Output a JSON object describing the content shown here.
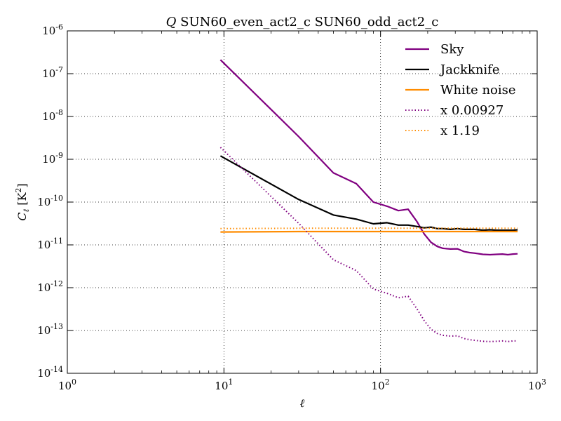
{
  "chart_data": {
    "type": "line",
    "title": {
      "var": "Q",
      "text": " SUN60_even_act2_c SUN60_odd_act2_c"
    },
    "xlabel": "ℓ",
    "ylabel": {
      "main": "C",
      "sub": "ℓ",
      "unit_open": " [K",
      "unit_sup": "2",
      "unit_close": "]"
    },
    "x_scale": "log",
    "y_scale": "log",
    "xlim": [
      1,
      1000
    ],
    "ylim": [
      1e-14,
      1e-06
    ],
    "x_ticks": [
      {
        "value": 1,
        "base": "10",
        "exp": "0"
      },
      {
        "value": 10,
        "base": "10",
        "exp": "1"
      },
      {
        "value": 100,
        "base": "10",
        "exp": "2"
      },
      {
        "value": 1000,
        "base": "10",
        "exp": "3"
      }
    ],
    "y_ticks": [
      {
        "value": 1e-14,
        "base": "10",
        "exp": "-14"
      },
      {
        "value": 1e-13,
        "base": "10",
        "exp": "-13"
      },
      {
        "value": 1e-12,
        "base": "10",
        "exp": "-12"
      },
      {
        "value": 1e-11,
        "base": "10",
        "exp": "-11"
      },
      {
        "value": 1e-10,
        "base": "10",
        "exp": "-10"
      },
      {
        "value": 1e-09,
        "base": "10",
        "exp": "-9"
      },
      {
        "value": 1e-08,
        "base": "10",
        "exp": "-8"
      },
      {
        "value": 1e-07,
        "base": "10",
        "exp": "-7"
      },
      {
        "value": 1e-06,
        "base": "10",
        "exp": "-6"
      }
    ],
    "grid": true,
    "legend_position": "top-right",
    "series": [
      {
        "name": "Sky",
        "color": "#800080",
        "style": "solid",
        "x": [
          9.5,
          30,
          50,
          70,
          90,
          110,
          130,
          150,
          170,
          190,
          210,
          230,
          250,
          280,
          310,
          340,
          370,
          400,
          450,
          500,
          550,
          600,
          650,
          700,
          750
        ],
        "y": [
          2.1e-07,
          3.4e-09,
          4.8e-10,
          2.7e-10,
          1e-10,
          8e-11,
          6.3e-11,
          6.8e-11,
          3.6e-11,
          1.8e-11,
          1.15e-11,
          9.2e-12,
          8.3e-12,
          8e-12,
          8.1e-12,
          7e-12,
          6.6e-12,
          6.4e-12,
          6e-12,
          5.9e-12,
          6e-12,
          6.1e-12,
          5.9e-12,
          6.1e-12,
          6.2e-12
        ]
      },
      {
        "name": "Jackknife",
        "color": "#000000",
        "style": "solid",
        "x": [
          9.5,
          30,
          50,
          70,
          90,
          110,
          130,
          150,
          170,
          190,
          210,
          230,
          250,
          280,
          310,
          340,
          370,
          400,
          450,
          500,
          550,
          600,
          650,
          700,
          750
        ],
        "y": [
          1.2e-09,
          1.15e-10,
          5e-11,
          4e-11,
          3.1e-11,
          3.3e-11,
          2.9e-11,
          2.9e-11,
          2.7e-11,
          2.5e-11,
          2.6e-11,
          2.4e-11,
          2.4e-11,
          2.3e-11,
          2.4e-11,
          2.3e-11,
          2.3e-11,
          2.3e-11,
          2.2e-11,
          2.25e-11,
          2.2e-11,
          2.2e-11,
          2.2e-11,
          2.2e-11,
          2.25e-11
        ]
      },
      {
        "name": "White noise",
        "color": "#ff8c00",
        "style": "solid",
        "x": [
          9.5,
          30,
          50,
          70,
          90,
          110,
          150,
          200,
          300,
          400,
          500,
          600,
          750
        ],
        "y": [
          2e-11,
          2.05e-11,
          2.05e-11,
          2.05e-11,
          2.05e-11,
          2.05e-11,
          2.05e-11,
          2.05e-11,
          2.05e-11,
          2.05e-11,
          2.05e-11,
          2.05e-11,
          2.05e-11
        ]
      },
      {
        "name": "x 0.00927",
        "color": "#800080",
        "style": "dotted",
        "x": [
          9.5,
          30,
          50,
          70,
          90,
          110,
          130,
          150,
          170,
          190,
          210,
          230,
          250,
          280,
          310,
          340,
          370,
          400,
          450,
          500,
          550,
          600,
          650,
          700,
          750
        ],
        "y": [
          1.9e-09,
          3.2e-11,
          4.5e-12,
          2.5e-12,
          9.3e-13,
          7.4e-13,
          5.8e-13,
          6.3e-13,
          3.3e-13,
          1.7e-13,
          1.07e-13,
          8.5e-14,
          7.7e-14,
          7.4e-14,
          7.5e-14,
          6.5e-14,
          6.1e-14,
          5.9e-14,
          5.6e-14,
          5.5e-14,
          5.6e-14,
          5.7e-14,
          5.5e-14,
          5.7e-14,
          5.7e-14
        ]
      },
      {
        "name": "x 1.19",
        "color": "#ff8c00",
        "style": "dotted",
        "x": [
          9.5,
          30,
          50,
          70,
          90,
          110,
          150,
          200,
          300,
          400,
          500,
          600,
          750
        ],
        "y": [
          2.4e-11,
          2.45e-11,
          2.45e-11,
          2.45e-11,
          2.45e-11,
          2.45e-11,
          2.45e-11,
          2.45e-11,
          2.45e-11,
          2.45e-11,
          2.45e-11,
          2.45e-11,
          2.45e-11
        ]
      }
    ]
  }
}
